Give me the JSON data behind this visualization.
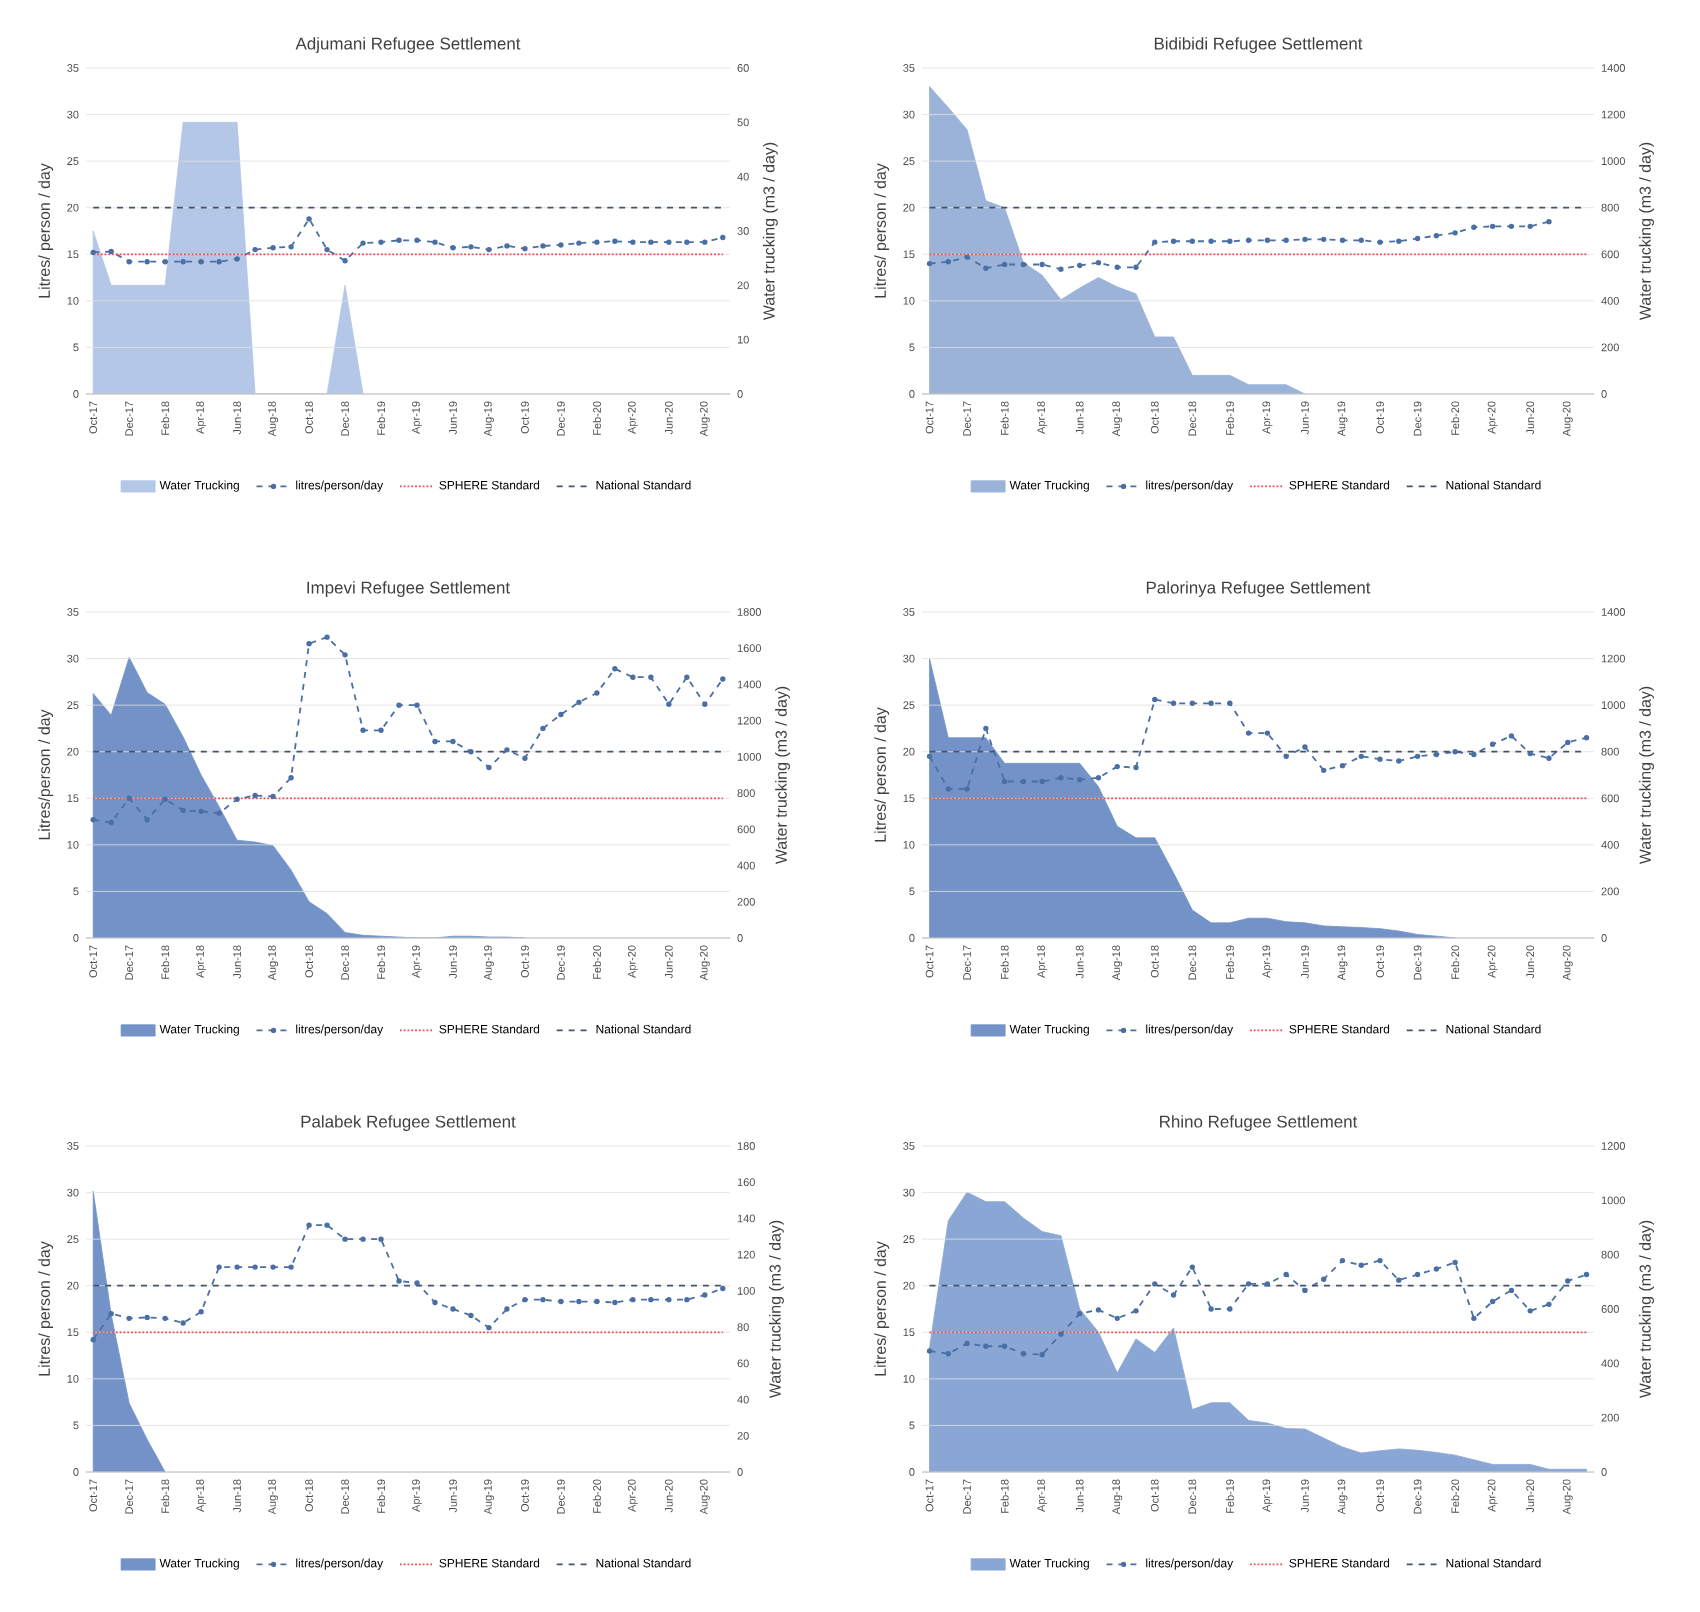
{
  "chart_data": [
    {
      "type": "line",
      "title": "Adjumani Refugee Settlement",
      "ylabel": "Litres/ person / day",
      "y2label": "Water trucking (m3 / day)",
      "categories": [
        "Oct-17",
        null,
        "Dec-17",
        null,
        "Feb-18",
        null,
        "Apr-18",
        null,
        "Jun-18",
        null,
        "Aug-18",
        null,
        "Oct-18",
        null,
        "Dec-18",
        null,
        "Feb-19",
        null,
        "Apr-19",
        null,
        "Jun-19",
        null,
        "Aug-19",
        null,
        "Oct-19",
        null,
        "Dec-19",
        null,
        "Feb-20",
        null,
        "Apr-20",
        null,
        "Jun-20",
        null,
        "Aug-20",
        null
      ],
      "series": [
        {
          "name": "Water Trucking",
          "type": "area",
          "axis": "y2",
          "color": "#b4c7e7",
          "values": [
            30,
            20,
            20,
            20,
            20,
            50,
            50,
            50,
            50,
            0,
            0,
            0,
            0,
            0,
            20,
            0,
            null,
            null,
            null,
            null,
            null,
            null,
            null,
            null,
            null,
            null,
            null,
            null,
            null,
            null,
            null,
            null,
            null,
            null,
            null,
            null
          ]
        },
        {
          "name": "litres/person/day",
          "type": "line",
          "color": "#4a6fa5",
          "marker": "circle",
          "line_style": "dashed",
          "values": [
            15.2,
            15.3,
            14.2,
            14.2,
            14.2,
            14.2,
            14.2,
            14.2,
            14.5,
            15.5,
            15.7,
            15.8,
            18.8,
            15.5,
            14.3,
            16.2,
            16.3,
            16.5,
            16.5,
            16.3,
            15.7,
            15.8,
            15.5,
            15.9,
            15.6,
            15.9,
            16.0,
            16.2,
            16.3,
            16.4,
            16.3,
            16.3,
            16.3,
            16.3,
            16.3,
            16.8
          ]
        }
      ],
      "ref_lines": [
        {
          "axis": "y",
          "value": 15,
          "label": "SPHERE Standard",
          "color": "#e05050",
          "line_style": "dotted"
        },
        {
          "axis": "y",
          "value": 20,
          "label": "National Standard",
          "color": "#44546a",
          "line_style": "dashed"
        }
      ],
      "ylim": [
        0,
        35
      ],
      "yticks": [
        0,
        5,
        10,
        15,
        20,
        25,
        30,
        35
      ],
      "y2lim": [
        0,
        60
      ],
      "y2ticks": [
        0,
        10,
        20,
        30,
        40,
        50,
        60
      ],
      "grid": "y",
      "legend": "bottom"
    },
    {
      "type": "line",
      "title": "Bidibidi Refugee Settlement",
      "ylabel": "Litres/ person / day",
      "y2label": "Water trucking (m3 / day)",
      "categories": [
        "Oct-17",
        null,
        "Dec-17",
        null,
        "Feb-18",
        null,
        "Apr-18",
        null,
        "Jun-18",
        null,
        "Aug-18",
        null,
        "Oct-18",
        null,
        "Dec-18",
        null,
        "Feb-19",
        null,
        "Apr-19",
        null,
        "Jun-19",
        null,
        "Aug-19",
        null,
        "Oct-19",
        null,
        "Dec-19",
        null,
        "Feb-20",
        null,
        "Apr-20",
        null,
        "Jun-20",
        null,
        "Aug-20",
        null
      ],
      "series": [
        {
          "name": "Water Trucking",
          "type": "area",
          "axis": "y2",
          "color": "#9bb3d9",
          "values": [
            1320,
            1230,
            1135,
            830,
            800,
            565,
            510,
            405,
            455,
            500,
            460,
            430,
            245,
            245,
            80,
            80,
            80,
            40,
            40,
            40,
            0,
            null,
            null,
            null,
            null,
            null,
            null,
            null,
            null,
            null,
            null,
            null,
            null,
            null,
            null,
            null
          ]
        },
        {
          "name": "litres/person/day",
          "type": "line",
          "color": "#4a6fa5",
          "marker": "circle",
          "line_style": "dashed",
          "values": [
            14.0,
            14.2,
            14.7,
            13.5,
            13.9,
            13.9,
            13.9,
            13.4,
            13.8,
            14.1,
            13.6,
            13.6,
            16.3,
            16.4,
            16.4,
            16.4,
            16.4,
            16.5,
            16.5,
            16.5,
            16.6,
            16.6,
            16.5,
            16.5,
            16.3,
            16.4,
            16.7,
            17.0,
            17.3,
            17.9,
            18.0,
            18.0,
            18.0,
            18.5,
            null,
            null
          ]
        }
      ],
      "ref_lines": [
        {
          "axis": "y",
          "value": 15,
          "label": "SPHERE Standard",
          "color": "#e05050",
          "line_style": "dotted"
        },
        {
          "axis": "y",
          "value": 20,
          "label": "National Standard",
          "color": "#44546a",
          "line_style": "dashed"
        }
      ],
      "ylim": [
        0,
        35
      ],
      "yticks": [
        0,
        5,
        10,
        15,
        20,
        25,
        30,
        35
      ],
      "y2lim": [
        0,
        1400
      ],
      "y2ticks": [
        0,
        200,
        400,
        600,
        800,
        1000,
        1200,
        1400
      ],
      "grid": "y",
      "legend": "bottom"
    },
    {
      "type": "line",
      "title": "Impevi Refugee Settlement",
      "ylabel": "Litres/person / day",
      "y2label": "Water trucking (m3 / day)",
      "categories": [
        "Oct-17",
        null,
        "Dec-17",
        null,
        "Feb-18",
        null,
        "Apr-18",
        null,
        "Jun-18",
        null,
        "Aug-18",
        null,
        "Oct-18",
        null,
        "Dec-18",
        null,
        "Feb-19",
        null,
        "Apr-19",
        null,
        "Jun-19",
        null,
        "Aug-19",
        null,
        "Oct-19",
        null,
        "Dec-19",
        null,
        "Feb-20",
        null,
        "Apr-20",
        null,
        "Jun-20",
        null,
        "Aug-20",
        null
      ],
      "series": [
        {
          "name": "Water Trucking",
          "type": "area",
          "axis": "y2",
          "color": "#7393c8",
          "values": [
            1350,
            1230,
            1550,
            1355,
            1290,
            1110,
            900,
            725,
            540,
            530,
            510,
            375,
            200,
            135,
            30,
            15,
            10,
            5,
            0,
            0,
            10,
            10,
            5,
            5,
            0,
            null,
            null,
            null,
            null,
            null,
            null,
            null,
            null,
            null,
            null,
            null
          ]
        },
        {
          "name": "litres/person/day",
          "type": "line",
          "color": "#4a6fa5",
          "marker": "circle",
          "line_style": "dashed",
          "values": [
            12.7,
            12.4,
            15.0,
            12.7,
            14.9,
            13.7,
            13.6,
            13.4,
            14.9,
            15.3,
            15.2,
            17.2,
            31.6,
            32.3,
            30.4,
            22.3,
            22.3,
            25.0,
            25.0,
            21.1,
            21.1,
            20.0,
            18.3,
            20.2,
            19.3,
            22.5,
            24.0,
            25.3,
            26.3,
            28.9,
            28.0,
            28.0,
            25.1,
            28.0,
            25.1,
            27.8
          ]
        }
      ],
      "ref_lines": [
        {
          "axis": "y",
          "value": 15,
          "label": "SPHERE Standard",
          "color": "#e05050",
          "line_style": "dotted"
        },
        {
          "axis": "y",
          "value": 20,
          "label": "National Standard",
          "color": "#44546a",
          "line_style": "dashed"
        }
      ],
      "ylim": [
        0,
        35
      ],
      "yticks": [
        0,
        5,
        10,
        15,
        20,
        25,
        30,
        35
      ],
      "y2lim": [
        0,
        1800
      ],
      "y2ticks": [
        0,
        200,
        400,
        600,
        800,
        1000,
        1200,
        1400,
        1600,
        1800
      ],
      "grid": "y",
      "legend": "bottom"
    },
    {
      "type": "line",
      "title": "Palorinya Refugee Settlement",
      "ylabel": "Litres/ person / day",
      "y2label": "Water trucking (m3 / day)",
      "categories": [
        "Oct-17",
        null,
        "Dec-17",
        null,
        "Feb-18",
        null,
        "Apr-18",
        null,
        "Jun-18",
        null,
        "Aug-18",
        null,
        "Oct-18",
        null,
        "Dec-18",
        null,
        "Feb-19",
        null,
        "Apr-19",
        null,
        "Jun-19",
        null,
        "Aug-19",
        null,
        "Oct-19",
        null,
        "Dec-19",
        null,
        "Feb-20",
        null,
        "Apr-20",
        null,
        "Jun-20",
        null,
        "Aug-20",
        null
      ],
      "series": [
        {
          "name": "Water Trucking",
          "type": "area",
          "axis": "y2",
          "color": "#7393c8",
          "values": [
            1200,
            860,
            860,
            860,
            750,
            750,
            750,
            750,
            750,
            650,
            480,
            430,
            430,
            280,
            120,
            65,
            65,
            85,
            85,
            70,
            65,
            52,
            48,
            45,
            40,
            30,
            15,
            8,
            0,
            null,
            null,
            null,
            null,
            null,
            null,
            null
          ]
        },
        {
          "name": "litres/person/day",
          "type": "line",
          "color": "#4a6fa5",
          "marker": "circle",
          "line_style": "dashed",
          "values": [
            19.5,
            16.0,
            16.0,
            22.5,
            16.8,
            16.8,
            16.8,
            17.2,
            17.0,
            17.2,
            18.4,
            18.3,
            25.6,
            25.2,
            25.2,
            25.2,
            25.2,
            22.0,
            22.0,
            19.5,
            20.5,
            18.0,
            18.5,
            19.5,
            19.2,
            19.0,
            19.5,
            19.7,
            20.0,
            19.7,
            20.8,
            21.7,
            19.8,
            19.3,
            21.0,
            21.5
          ]
        }
      ],
      "ref_lines": [
        {
          "axis": "y",
          "value": 15,
          "label": "SPHERE Standard",
          "color": "#e05050",
          "line_style": "dotted"
        },
        {
          "axis": "y",
          "value": 20,
          "label": "National Standard",
          "color": "#44546a",
          "line_style": "dashed"
        }
      ],
      "ylim": [
        0,
        35
      ],
      "yticks": [
        0,
        5,
        10,
        15,
        20,
        25,
        30,
        35
      ],
      "y2lim": [
        0,
        1400
      ],
      "y2ticks": [
        0,
        200,
        400,
        600,
        800,
        1000,
        1200,
        1400
      ],
      "grid": "y",
      "legend": "bottom"
    },
    {
      "type": "line",
      "title": "Palabek Refugee Settlement",
      "ylabel": "Litres/ person / day",
      "y2label": "Water trucking (m3 / day)",
      "categories": [
        "Oct-17",
        null,
        "Dec-17",
        null,
        "Feb-18",
        null,
        "Apr-18",
        null,
        "Jun-18",
        null,
        "Aug-18",
        null,
        "Oct-18",
        null,
        "Dec-18",
        null,
        "Feb-19",
        null,
        "Apr-19",
        null,
        "Jun-19",
        null,
        "Aug-19",
        null,
        "Oct-19",
        null,
        "Dec-19",
        null,
        "Feb-20",
        null,
        "Apr-20",
        null,
        "Jun-20",
        null,
        "Aug-20",
        null
      ],
      "series": [
        {
          "name": "Water Trucking",
          "type": "area",
          "axis": "y2",
          "color": "#7393c8",
          "values": [
            155,
            87,
            38,
            18,
            0,
            null,
            null,
            null,
            null,
            null,
            null,
            null,
            null,
            null,
            null,
            null,
            null,
            null,
            null,
            null,
            null,
            null,
            null,
            null,
            null,
            null,
            null,
            null,
            null,
            null,
            null,
            null,
            null,
            null,
            null,
            null
          ]
        },
        {
          "name": "litres/person/day",
          "type": "line",
          "color": "#4a6fa5",
          "marker": "circle",
          "line_style": "dashed",
          "values": [
            14.2,
            17.0,
            16.5,
            16.6,
            16.5,
            16.0,
            17.2,
            22.0,
            22.0,
            22.0,
            22.0,
            22.0,
            26.5,
            26.5,
            25.0,
            25.0,
            25.0,
            20.5,
            20.3,
            18.2,
            17.5,
            16.8,
            15.5,
            17.5,
            18.5,
            18.5,
            18.3,
            18.3,
            18.3,
            18.2,
            18.5,
            18.5,
            18.5,
            18.5,
            19.0,
            19.7
          ]
        }
      ],
      "ref_lines": [
        {
          "axis": "y",
          "value": 15,
          "label": "SPHERE Standard",
          "color": "#e05050",
          "line_style": "dotted"
        },
        {
          "axis": "y",
          "value": 20,
          "label": "National Standard",
          "color": "#44546a",
          "line_style": "dashed"
        }
      ],
      "ylim": [
        0,
        35
      ],
      "yticks": [
        0,
        5,
        10,
        15,
        20,
        25,
        30,
        35
      ],
      "y2lim": [
        0,
        180
      ],
      "y2ticks": [
        0,
        20,
        40,
        60,
        80,
        100,
        120,
        140,
        160,
        180
      ],
      "grid": "y",
      "legend": "bottom"
    },
    {
      "type": "line",
      "title": "Rhino Refugee Settlement",
      "ylabel": "Litres/ person / day",
      "y2label": "Water trucking (m3 / day)",
      "categories": [
        "Oct-17",
        null,
        "Dec-17",
        null,
        "Feb-18",
        null,
        "Apr-18",
        null,
        "Jun-18",
        null,
        "Aug-18",
        null,
        "Oct-18",
        null,
        "Dec-18",
        null,
        "Feb-19",
        null,
        "Apr-19",
        null,
        "Jun-19",
        null,
        "Aug-19",
        null,
        "Oct-19",
        null,
        "Dec-19",
        null,
        "Feb-20",
        null,
        "Apr-20",
        null,
        "Jun-20",
        null,
        "Aug-20",
        null
      ],
      "series": [
        {
          "name": "Water Trucking",
          "type": "area",
          "axis": "y2",
          "color": "#8aa6d4",
          "values": [
            457,
            925,
            1030,
            995,
            995,
            935,
            885,
            870,
            600,
            515,
            365,
            490,
            440,
            530,
            230,
            255,
            255,
            190,
            180,
            160,
            158,
            125,
            92,
            70,
            78,
            85,
            80,
            72,
            62,
            45,
            28,
            28,
            28,
            10,
            10,
            10
          ]
        },
        {
          "name": "litres/person/day",
          "type": "line",
          "color": "#4a6fa5",
          "marker": "circle",
          "line_style": "dashed",
          "values": [
            13.0,
            12.7,
            13.8,
            13.5,
            13.5,
            12.7,
            12.6,
            14.8,
            17.0,
            17.4,
            16.5,
            17.3,
            20.2,
            19.0,
            22.0,
            17.5,
            17.5,
            20.2,
            20.2,
            21.2,
            19.5,
            20.7,
            22.7,
            22.2,
            22.7,
            20.6,
            21.2,
            21.8,
            22.5,
            16.5,
            18.3,
            19.5,
            17.3,
            18.0,
            20.5,
            21.2
          ]
        }
      ],
      "ref_lines": [
        {
          "axis": "y",
          "value": 15,
          "label": "SPHERE Standard",
          "color": "#e05050",
          "line_style": "dotted"
        },
        {
          "axis": "y",
          "value": 20,
          "label": "National Standard",
          "color": "#44546a",
          "line_style": "dashed"
        }
      ],
      "ylim": [
        0,
        35
      ],
      "yticks": [
        0,
        5,
        10,
        15,
        20,
        25,
        30,
        35
      ],
      "y2lim": [
        0,
        1200
      ],
      "y2ticks": [
        0,
        200,
        400,
        600,
        800,
        1000,
        1200
      ],
      "grid": "y",
      "legend": "bottom"
    }
  ]
}
